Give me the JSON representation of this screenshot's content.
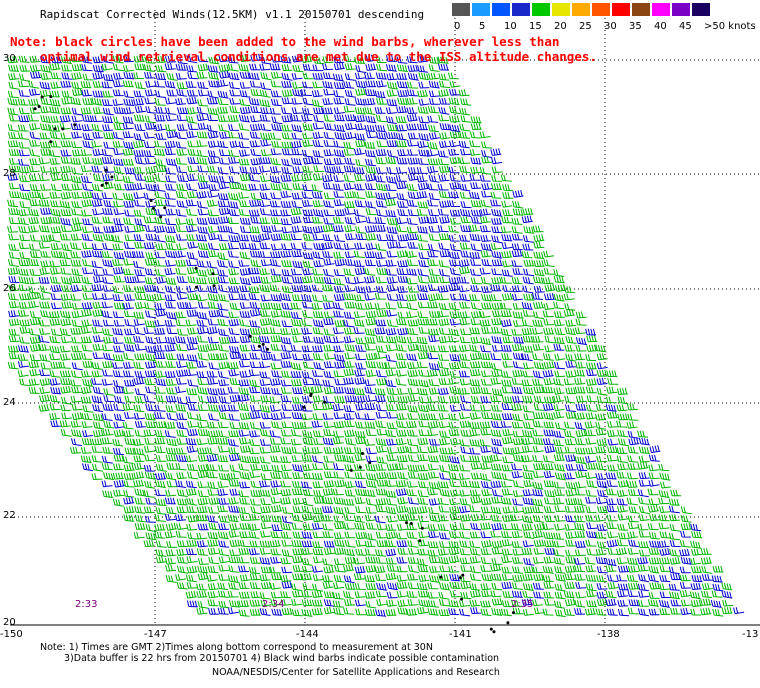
{
  "title": "Rapidscat Corrected Winds(12.5KM) v1.1 20150701 descending",
  "note_line1": "Note: black circles have been added to the wind barbs, wherever less than",
  "note_line2": "optimal wind retrieval conditions are met due to the ISS altitude changes.",
  "legend": {
    "colors": [
      "#555555",
      "#1a9cff",
      "#0055ff",
      "#1a28c8",
      "#00c800",
      "#e6e600",
      "#ffaa00",
      "#ff5500",
      "#ff0000",
      "#8b4513",
      "#ff00ff",
      "#7a00c8",
      "#1a0060"
    ],
    "labels": [
      "0",
      "5",
      "10",
      "15",
      "20",
      "25",
      "30",
      "35",
      "40",
      "45",
      ">50 knots"
    ]
  },
  "lat_labels": [
    "30",
    "28",
    "26",
    "24",
    "22",
    "20"
  ],
  "lon_labels": [
    "-150",
    "-147",
    "-144",
    "-141",
    "-138",
    "-13"
  ],
  "times": [
    "2:33",
    "2:34",
    "2:35"
  ],
  "footer_line1": "Note: 1) Times are GMT 2)Times along bottom correspond to measurement at 30N",
  "footer_line2": "3)Data buffer is 22 hrs from 20150701 4) Black wind barbs indicate possible contamination",
  "footer_line3": "NOAA/NESDIS/Center for Satellite Applications and Research",
  "colors": {
    "low_wind": "#0000d0",
    "mid_wind": "#00b400",
    "flag": "#000000",
    "note": "#ff0000",
    "time": "#800080"
  }
}
